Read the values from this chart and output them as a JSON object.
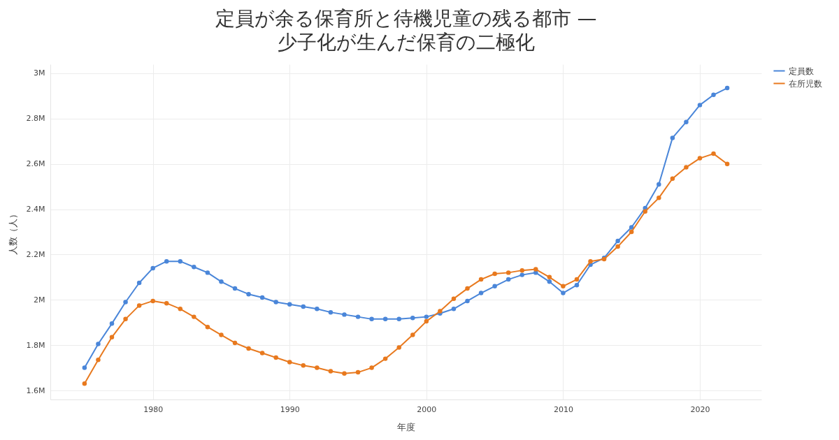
{
  "chart_data": {
    "type": "line",
    "title": "定員が余る保育所と待機児童の残る都市 —",
    "subtitle": "少子化が生んだ保育の二極化",
    "xlabel": "年度",
    "ylabel": "人数（人）",
    "x": [
      1975,
      1976,
      1977,
      1978,
      1979,
      1980,
      1981,
      1982,
      1983,
      1984,
      1985,
      1986,
      1987,
      1988,
      1989,
      1990,
      1991,
      1992,
      1993,
      1994,
      1995,
      1996,
      1997,
      1998,
      1999,
      2000,
      2001,
      2002,
      2003,
      2004,
      2005,
      2006,
      2007,
      2008,
      2009,
      2010,
      2011,
      2012,
      2013,
      2014,
      2015,
      2016,
      2017,
      2018,
      2019,
      2020,
      2021,
      2022
    ],
    "series": [
      {
        "name": "定員数",
        "color": "#4a86d9",
        "values": [
          1700000,
          1805000,
          1895000,
          1990000,
          2075000,
          2140000,
          2170000,
          2170000,
          2145000,
          2120000,
          2080000,
          2050000,
          2025000,
          2010000,
          1990000,
          1980000,
          1970000,
          1960000,
          1945000,
          1935000,
          1925000,
          1915000,
          1915000,
          1915000,
          1920000,
          1925000,
          1940000,
          1960000,
          1995000,
          2030000,
          2060000,
          2090000,
          2110000,
          2120000,
          2080000,
          2030000,
          2065000,
          2155000,
          2185000,
          2260000,
          2320000,
          2405000,
          2510000,
          2715000,
          2785000,
          2860000,
          2905000,
          2935000
        ]
      },
      {
        "name": "在所児数",
        "color": "#e8791e",
        "values": [
          1630000,
          1735000,
          1835000,
          1915000,
          1975000,
          1995000,
          1985000,
          1960000,
          1925000,
          1880000,
          1845000,
          1810000,
          1785000,
          1765000,
          1745000,
          1725000,
          1710000,
          1700000,
          1685000,
          1675000,
          1680000,
          1700000,
          1740000,
          1790000,
          1845000,
          1905000,
          1950000,
          2005000,
          2050000,
          2090000,
          2115000,
          2120000,
          2130000,
          2135000,
          2100000,
          2060000,
          2090000,
          2170000,
          2180000,
          2235000,
          2300000,
          2390000,
          2450000,
          2535000,
          2585000,
          2625000,
          2645000,
          2600000
        ]
      }
    ],
    "xlim": [
      1972.5,
      2024.5
    ],
    "xticks": [
      1980,
      1990,
      2000,
      2010,
      2020
    ],
    "ylim": [
      1560000,
      3040000
    ],
    "yticks": [
      {
        "value": 1600000,
        "label": "1.6M"
      },
      {
        "value": 1800000,
        "label": "1.8M"
      },
      {
        "value": 2000000,
        "label": "2M"
      },
      {
        "value": 2200000,
        "label": "2.2M"
      },
      {
        "value": 2400000,
        "label": "2.4M"
      },
      {
        "value": 2600000,
        "label": "2.6M"
      },
      {
        "value": 2800000,
        "label": "2.8M"
      },
      {
        "value": 3000000,
        "label": "3M"
      }
    ],
    "grid": true,
    "legend": "top right",
    "marker": "circle",
    "line_style": "solid"
  }
}
